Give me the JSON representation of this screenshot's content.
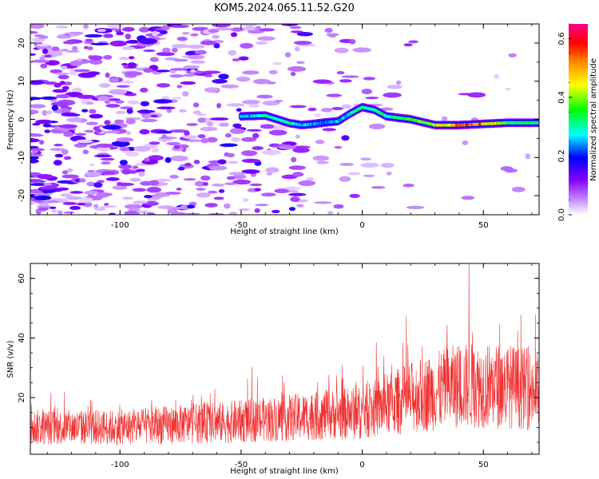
{
  "title": "KOM5.2024.065.11.52.G20",
  "chart_data": [
    {
      "type": "heatmap",
      "xlabel": "Height of straight line (km)",
      "ylabel": "Frequency (Hz)",
      "xlim": [
        -137,
        73
      ],
      "ylim": [
        -25,
        25
      ],
      "xticks": [
        -100,
        -50,
        0,
        50
      ],
      "yticks": [
        -20,
        -10,
        0,
        10,
        20
      ],
      "colorbar": {
        "label": "Normalized spectral amplitude",
        "range": [
          0,
          0.65
        ],
        "ticks": [
          0.0,
          0.2,
          0.4,
          0.6
        ],
        "colors": [
          "#ffffff",
          "#cc99ff",
          "#8800ff",
          "#0000ff",
          "#00ffff",
          "#00ff00",
          "#ffff00",
          "#ff8800",
          "#ff0000",
          "#ff0088"
        ]
      },
      "signal_track": {
        "x": [
          -50,
          -40,
          -30,
          -25,
          -20,
          -15,
          -10,
          -5,
          0,
          5,
          10,
          20,
          30,
          40,
          50,
          60,
          73
        ],
        "y": [
          0.8,
          1.0,
          -1.0,
          -1.5,
          -1.2,
          -0.8,
          -0.5,
          1.5,
          3.2,
          2.5,
          0.8,
          0.0,
          -1.5,
          -1.5,
          -1.2,
          -0.9,
          -0.9
        ],
        "amplitude": [
          0.25,
          0.3,
          0.3,
          0.25,
          0.25,
          0.22,
          0.25,
          0.28,
          0.3,
          0.3,
          0.3,
          0.35,
          0.4,
          0.55,
          0.5,
          0.35,
          0.32
        ]
      }
    },
    {
      "type": "line",
      "xlabel": "Height of straight line (km)",
      "ylabel": "SNR (v/v)",
      "xlim": [
        -137,
        73
      ],
      "ylim": [
        1,
        65
      ],
      "xticks": [
        -100,
        -50,
        0,
        50
      ],
      "yticks": [
        20,
        40,
        60
      ],
      "series": [
        {
          "color": "#f03232",
          "trend_x": [
            -137,
            -100,
            -50,
            0,
            20,
            40,
            60,
            73
          ],
          "trend_y": [
            10,
            10,
            12,
            15,
            20,
            24,
            24,
            22
          ],
          "peak_x": 44,
          "peak_y": 65
        }
      ]
    }
  ]
}
